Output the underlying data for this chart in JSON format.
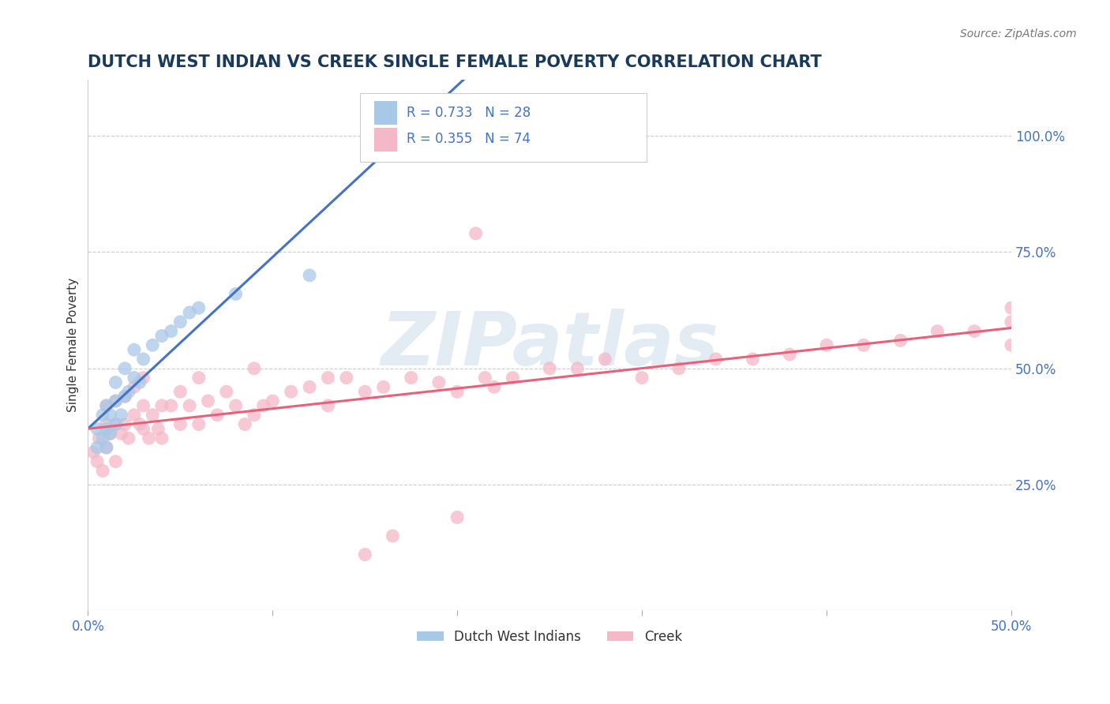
{
  "title": "DUTCH WEST INDIAN VS CREEK SINGLE FEMALE POVERTY CORRELATION CHART",
  "source": "Source: ZipAtlas.com",
  "ylabel": "Single Female Poverty",
  "xlim": [
    0.0,
    0.5
  ],
  "ylim": [
    -0.02,
    1.12
  ],
  "xtick_labels": [
    "0.0%",
    "",
    "",
    "",
    "",
    "50.0%"
  ],
  "xtick_values": [
    0.0,
    0.1,
    0.2,
    0.3,
    0.4,
    0.5
  ],
  "ytick_labels": [
    "25.0%",
    "50.0%",
    "75.0%",
    "100.0%"
  ],
  "ytick_values": [
    0.25,
    0.5,
    0.75,
    1.0
  ],
  "title_color": "#1a3a5c",
  "title_fontsize": 15,
  "tick_color": "#4472c4",
  "dutch_color": "#a8c8e8",
  "creek_color": "#f4b8c8",
  "dutch_line_color": "#4472c4",
  "creek_line_color": "#e8607a",
  "legend_r_dutch": "R = 0.733",
  "legend_n_dutch": "N = 28",
  "legend_r_creek": "R = 0.355",
  "legend_n_creek": "N = 74",
  "legend_label_dutch": "Dutch West Indians",
  "legend_label_creek": "Creek",
  "watermark": "ZIPatlas",
  "dutch_x": [
    0.005,
    0.005,
    0.008,
    0.008,
    0.01,
    0.01,
    0.01,
    0.012,
    0.012,
    0.015,
    0.015,
    0.015,
    0.018,
    0.02,
    0.02,
    0.022,
    0.025,
    0.025,
    0.028,
    0.03,
    0.035,
    0.04,
    0.045,
    0.05,
    0.055,
    0.06,
    0.08,
    0.12
  ],
  "dutch_y": [
    0.33,
    0.37,
    0.35,
    0.4,
    0.33,
    0.37,
    0.42,
    0.36,
    0.4,
    0.38,
    0.43,
    0.47,
    0.4,
    0.44,
    0.5,
    0.45,
    0.48,
    0.54,
    0.47,
    0.52,
    0.55,
    0.57,
    0.58,
    0.6,
    0.62,
    0.63,
    0.66,
    0.7
  ],
  "creek_x": [
    0.003,
    0.005,
    0.006,
    0.008,
    0.01,
    0.01,
    0.01,
    0.012,
    0.015,
    0.015,
    0.015,
    0.018,
    0.02,
    0.02,
    0.022,
    0.025,
    0.025,
    0.028,
    0.03,
    0.03,
    0.03,
    0.033,
    0.035,
    0.038,
    0.04,
    0.04,
    0.045,
    0.05,
    0.05,
    0.055,
    0.06,
    0.06,
    0.065,
    0.07,
    0.075,
    0.08,
    0.085,
    0.09,
    0.09,
    0.095,
    0.1,
    0.11,
    0.12,
    0.13,
    0.14,
    0.15,
    0.16,
    0.175,
    0.19,
    0.2,
    0.215,
    0.23,
    0.25,
    0.265,
    0.28,
    0.3,
    0.32,
    0.34,
    0.36,
    0.38,
    0.4,
    0.42,
    0.44,
    0.46,
    0.48,
    0.5,
    0.5,
    0.5,
    0.21,
    0.22,
    0.13,
    0.15,
    0.165,
    0.2
  ],
  "creek_y": [
    0.32,
    0.3,
    0.35,
    0.28,
    0.33,
    0.38,
    0.42,
    0.36,
    0.3,
    0.38,
    0.43,
    0.36,
    0.38,
    0.44,
    0.35,
    0.4,
    0.46,
    0.38,
    0.37,
    0.42,
    0.48,
    0.35,
    0.4,
    0.37,
    0.35,
    0.42,
    0.42,
    0.38,
    0.45,
    0.42,
    0.38,
    0.48,
    0.43,
    0.4,
    0.45,
    0.42,
    0.38,
    0.4,
    0.5,
    0.42,
    0.43,
    0.45,
    0.46,
    0.42,
    0.48,
    0.45,
    0.46,
    0.48,
    0.47,
    0.45,
    0.48,
    0.48,
    0.5,
    0.5,
    0.52,
    0.48,
    0.5,
    0.52,
    0.52,
    0.53,
    0.55,
    0.55,
    0.56,
    0.58,
    0.58,
    0.6,
    0.55,
    0.63,
    0.79,
    0.46,
    0.48,
    0.1,
    0.14,
    0.18
  ],
  "background_color": "#ffffff",
  "grid_color": "#cccccc"
}
